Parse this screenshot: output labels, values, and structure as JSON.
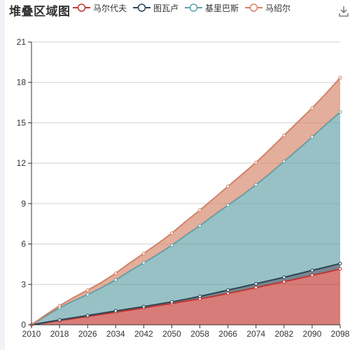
{
  "chart_data": {
    "type": "area",
    "stacked": true,
    "title": "堆叠区域图",
    "xlabel": "",
    "ylabel": "",
    "x": [
      2010,
      2014,
      2018,
      2022,
      2026,
      2030,
      2034,
      2038,
      2042,
      2046,
      2050,
      2054,
      2058,
      2062,
      2066,
      2070,
      2074,
      2078,
      2082,
      2086,
      2090,
      2094,
      2098
    ],
    "x_tick_labels": [
      "2010",
      "2018",
      "2026",
      "2034",
      "2042",
      "2050",
      "2058",
      "2066",
      "2074",
      "2082",
      "2090",
      "2098"
    ],
    "ylim": [
      0,
      21
    ],
    "y_ticks": [
      0,
      3,
      6,
      9,
      12,
      15,
      18,
      21
    ],
    "grid": true,
    "legend_position": "top",
    "series": [
      {
        "name": "马尔代夫",
        "color": "#c23531",
        "values": [
          0.0,
          0.15,
          0.31,
          0.46,
          0.62,
          0.78,
          0.93,
          1.09,
          1.25,
          1.42,
          1.58,
          1.76,
          1.93,
          2.12,
          2.33,
          2.54,
          2.76,
          2.98,
          3.2,
          3.43,
          3.67,
          3.9,
          4.15
        ]
      },
      {
        "name": "图瓦卢",
        "color": "#2f4554",
        "values": [
          0.0,
          0.03,
          0.05,
          0.07,
          0.07,
          0.08,
          0.1,
          0.1,
          0.1,
          0.11,
          0.12,
          0.14,
          0.18,
          0.22,
          0.25,
          0.27,
          0.29,
          0.31,
          0.33,
          0.35,
          0.37,
          0.39,
          0.4
        ]
      },
      {
        "name": "基里巴斯",
        "color": "#61a0a8",
        "values": [
          0.0,
          0.45,
          0.9,
          1.25,
          1.55,
          1.9,
          2.3,
          2.8,
          3.25,
          3.7,
          4.2,
          4.75,
          5.25,
          5.8,
          6.3,
          6.8,
          7.35,
          7.95,
          8.6,
          9.25,
          9.9,
          10.6,
          11.25
        ]
      },
      {
        "name": "马绍尔",
        "color": "#d48265",
        "values": [
          0.0,
          0.1,
          0.15,
          0.25,
          0.33,
          0.4,
          0.5,
          0.6,
          0.7,
          0.8,
          0.9,
          1.03,
          1.15,
          1.25,
          1.4,
          1.55,
          1.65,
          1.8,
          1.93,
          2.05,
          2.15,
          2.3,
          2.55
        ]
      }
    ]
  },
  "toolbox": {
    "icon": "download-icon"
  }
}
